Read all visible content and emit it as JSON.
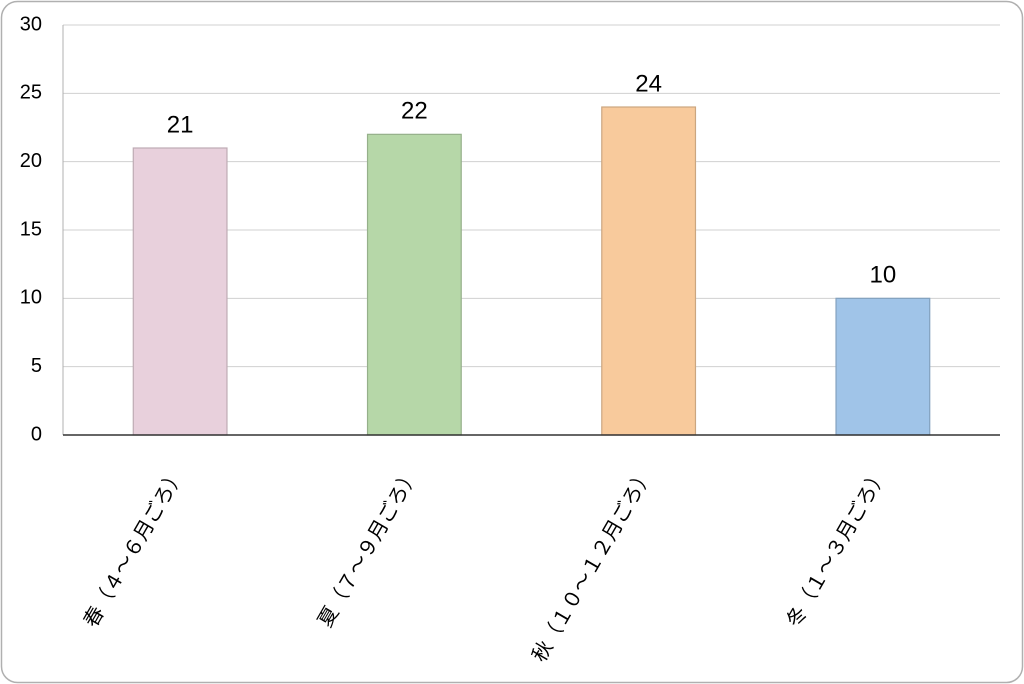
{
  "chart_data": {
    "type": "bar",
    "categories": [
      "春（４～６月ごろ）",
      "夏（７～９月ごろ）",
      "秋（１０～１２月ごろ）",
      "冬（１～３月ごろ）"
    ],
    "values": [
      21,
      22,
      24,
      10
    ],
    "colors": [
      "#e8d0dc",
      "#b6d7a8",
      "#f8ca9c",
      "#a0c4e8"
    ],
    "ylim": [
      0,
      30
    ],
    "yticks": [
      0,
      5,
      10,
      15,
      20,
      25,
      30
    ],
    "grid": true
  }
}
